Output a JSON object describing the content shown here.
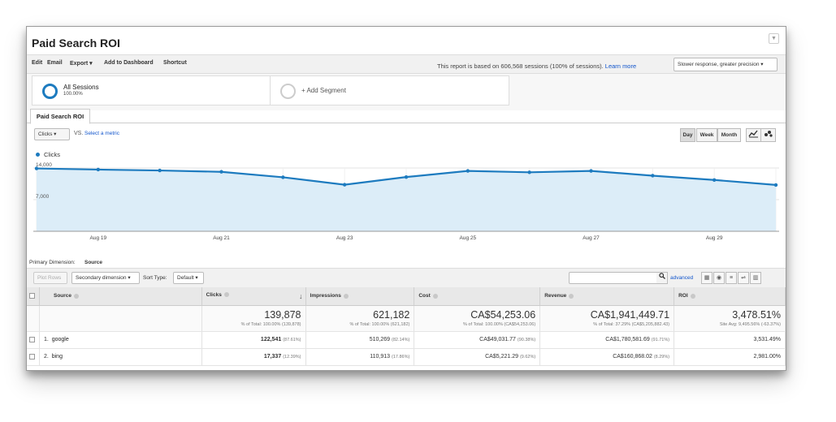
{
  "report": {
    "title": "Paid Search ROI",
    "caret": "▼"
  },
  "toolbar": {
    "edit": "Edit",
    "email": "Email",
    "export": "Export ▾",
    "add_dashboard": "Add to Dashboard",
    "shortcut": "Shortcut",
    "sessions_note": "This report is based on 606,568 sessions (100% of sessions).",
    "learn_more": "Learn more",
    "precision": "Slower response, greater precision ▾"
  },
  "segments": {
    "segment1_name": "All Sessions",
    "segment1_pct": "100.00%",
    "add_segment": "+ Add Segment"
  },
  "tabs": {
    "active": "Paid Search ROI"
  },
  "chart_controls": {
    "metric": "Clicks ▾",
    "vs": "VS.",
    "select_metric": "Select a metric",
    "day": "Day",
    "week": "Week",
    "month": "Month",
    "line_icon": "line-chart-icon",
    "motion_icon": "motion-chart-icon"
  },
  "chart_data": {
    "type": "area",
    "legend": [
      "Clicks"
    ],
    "series": [
      {
        "name": "Clicks",
        "color": "#1d7bbf",
        "x": [
          "Aug 18",
          "Aug 19",
          "Aug 20",
          "Aug 21",
          "Aug 22",
          "Aug 23",
          "Aug 24",
          "Aug 25",
          "Aug 26",
          "Aug 27",
          "Aug 28",
          "Aug 29",
          "Aug 30"
        ],
        "values": [
          13900,
          13650,
          13450,
          13150,
          11950,
          10300,
          12000,
          13350,
          13050,
          13350,
          12300,
          11350,
          10250
        ]
      }
    ],
    "x_tick_labels": [
      "Aug 19",
      "Aug 21",
      "Aug 23",
      "Aug 25",
      "Aug 27",
      "Aug 29"
    ],
    "y_tick_labels": [
      "14,000",
      "7,000"
    ],
    "ylim": [
      0,
      14000
    ],
    "grid": true,
    "fill_color": "#dcedf8"
  },
  "primary_dimension": {
    "label": "Primary Dimension:",
    "value": "Source"
  },
  "table_controls": {
    "plot_rows": "Plot Rows",
    "secondary_dimension": "Secondary dimension ▾",
    "sort_type_label": "Sort Type:",
    "sort_type": "Default ▾",
    "advanced": "advanced",
    "search_icon": "search-icon"
  },
  "table": {
    "headers": {
      "source": "Source",
      "clicks": "Clicks",
      "sort_arrow": "↓",
      "impressions": "Impressions",
      "cost": "Cost",
      "revenue": "Revenue",
      "roi": "ROI"
    },
    "totals": {
      "clicks": "139,878",
      "clicks_sub": "% of Total: 100.00% (139,878)",
      "impressions": "621,182",
      "impressions_sub": "% of Total: 100.00% (621,182)",
      "cost": "CA$54,253.06",
      "cost_sub": "% of Total: 100.00% (CA$54,253.06)",
      "revenue": "CA$1,941,449.71",
      "revenue_sub": "% of Total: 37.29% (CA$5,205,882.43)",
      "roi": "3,478.51%",
      "roi_sub": "Site Avg: 9,495.56% (-63.37%)"
    },
    "rows": [
      {
        "index": "1.",
        "source": "google",
        "clicks": "122,541",
        "clicks_pct": "(87.61%)",
        "impressions": "510,269",
        "impressions_pct": "(82.14%)",
        "cost": "CA$49,031.77",
        "cost_pct": "(90.38%)",
        "revenue": "CA$1,780,581.69",
        "revenue_pct": "(91.71%)",
        "roi": "3,531.49%"
      },
      {
        "index": "2.",
        "source": "bing",
        "clicks": "17,337",
        "clicks_pct": "(12.39%)",
        "impressions": "110,913",
        "impressions_pct": "(17.86%)",
        "cost": "CA$5,221.29",
        "cost_pct": "(9.62%)",
        "revenue": "CA$160,868.02",
        "revenue_pct": "(8.29%)",
        "roi": "2,981.00%"
      }
    ]
  }
}
